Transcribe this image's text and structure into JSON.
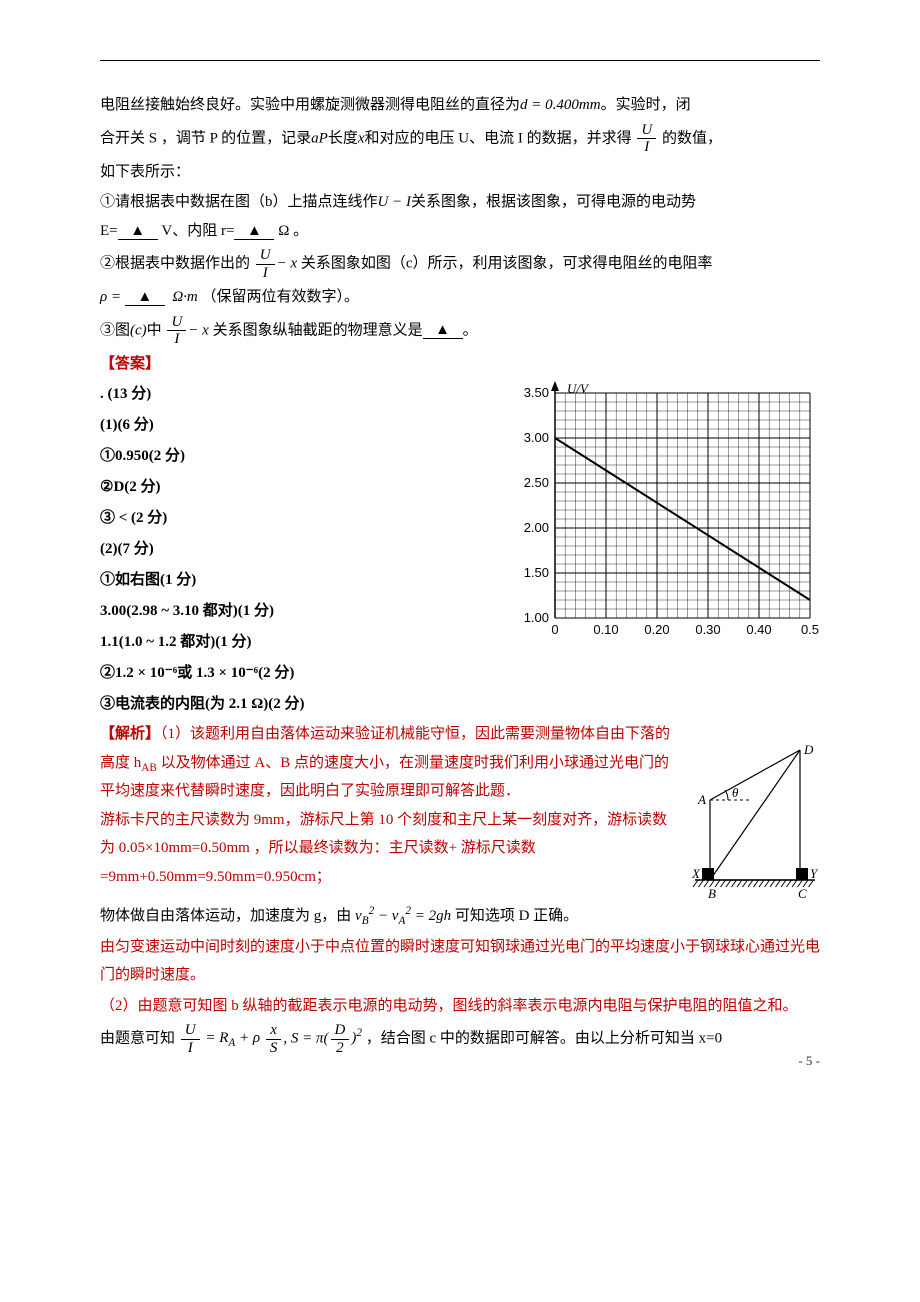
{
  "intro": {
    "line1_a": "电阻丝接触始终良好。实验中用螺旋测微器测得电阻丝的直径为",
    "d_eq": "d = 0.400mm",
    "line1_b": "。实验时，闭",
    "line2_a": "合开关 S ，调节 P 的位置，记录",
    "ap": "aP",
    "line2_b": "长度",
    "xvar": "x",
    "line2_c": "和对应的电压 U、电流 I 的数据，并求得",
    "line2_d": "的数值，",
    "line3": "如下表所示：",
    "q1_a": "①请根据表中数据在图（b）上描点连线作",
    "ui_rel": "U − I",
    "q1_b": "关系图象，根据该图象，可得电源的电动势",
    "q1_c": "E=",
    "unitV": "V",
    "q1_d": "、内阻 r=",
    "unitOhm": "Ω 。",
    "q2_a": "②根据表中数据作出的",
    "q2_b": "关系图象如图（c）所示，利用该图象，可求得电阻丝的电阻率",
    "rho": "ρ =",
    "rho_unit": "Ω·m",
    "rho_note": "（保留两位有效数字）。",
    "q3_a": "③图",
    "q3_c": "(c)",
    "q3_b": "中",
    "q3_d": "关系图象纵轴截距的物理意义是",
    "q3_e": "。",
    "frac_U": "U",
    "frac_I": "I",
    "minus_x": "− x",
    "triangle": "▲"
  },
  "answer": {
    "label": "【答案】",
    "rows": [
      ". (13 分)",
      "(1)(6 分)",
      "①0.950(2 分)",
      "②D(2 分)",
      "③ < (2 分)",
      "(2)(7 分)",
      "①如右图(1 分)",
      "3.00(2.98 ~ 3.10 都对)(1 分)",
      "1.1(1.0 ~ 1.2 都对)(1 分)",
      "②1.2 × 10⁻⁶或 1.3 × 10⁻⁶(2 分)",
      "③电流表的内阻(为 2.1 Ω)(2 分)"
    ]
  },
  "chart": {
    "ylabel": "U/V",
    "yticks": [
      "1.00",
      "1.50",
      "2.00",
      "2.50",
      "3.00",
      "3.50"
    ],
    "xticks": [
      "0",
      "0.10",
      "0.20",
      "0.30",
      "0.40",
      "0.5"
    ],
    "ymin": 1.0,
    "ymax": 3.5,
    "xmin": 0,
    "xmax": 0.5,
    "major_x_count": 5,
    "major_y_count": 5,
    "minor_div": 5,
    "bg": "#ffffff",
    "grid_color": "#000000",
    "line_color": "#000000",
    "line": {
      "x1": 0,
      "y1": 3.0,
      "x2": 0.5,
      "y2": 1.2
    },
    "font_size": 13
  },
  "triangle": {
    "labels": {
      "A": "A",
      "B": "B",
      "C": "C",
      "D": "D",
      "X": "X",
      "Y": "Y",
      "theta": "θ"
    },
    "stroke": "#000000"
  },
  "analysis": {
    "label": "【解析】",
    "p1": "（1）该题利用自由落体运动来验证机械能守恒，因此需要测量物体自由下落的高度 hₐ 以及物体通过 A、B 点的速度大小，在测量速度时我们利用小球通过光电门的平均速度来代替瞬时速度，因此明白了实验原理即可解答此题．",
    "p1b_hab": "AB",
    "p2": "游标卡尺的主尺读数为 9mm，游标尺上第 10 个刻度和主尺上某一刻度对齐，游标读数为 0.05×10mm=0.50mm ，所以最终读数为：主尺读数+ 游标尺读数=9mm+0.50mm=9.50mm=0.950cm；",
    "p3_a": "物体做自由落体运动，加速度为 g，由",
    "p3_eq": "v_B^2 − v_A^2 = 2gh",
    "p3_b": "可知选项 D 正确。",
    "p4": "由匀变速运动中间时刻的速度小于中点位置的瞬时速度可知钢球通过光电门的平均速度小于钢球球心通过光电门的瞬时速度。",
    "p5": "（2）由题意可知图 b 纵轴的截距表示电源的电动势，图线的斜率表示电源内电阻与保护电阻的阻值之和。",
    "p6_a": "由题意可知",
    "p6_eq": "U/I = R_A + ρ x/S, S = π(D/2)^2",
    "p6_b": "，结合图 c 中的数据即可解答。由以上分析可知当 x=0"
  },
  "footer": "- 5 -"
}
